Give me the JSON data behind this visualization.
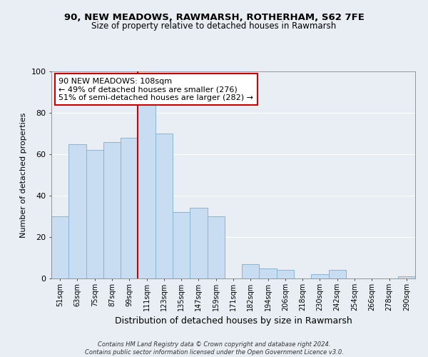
{
  "title": "90, NEW MEADOWS, RAWMARSH, ROTHERHAM, S62 7FE",
  "subtitle": "Size of property relative to detached houses in Rawmarsh",
  "xlabel": "Distribution of detached houses by size in Rawmarsh",
  "ylabel": "Number of detached properties",
  "bar_color": "#c8ddf2",
  "bar_edge_color": "#8ab4d4",
  "background_color": "#e8eef4",
  "plot_background": "#e8eef4",
  "grid_color": "#ffffff",
  "categories": [
    "51sqm",
    "63sqm",
    "75sqm",
    "87sqm",
    "99sqm",
    "111sqm",
    "123sqm",
    "135sqm",
    "147sqm",
    "159sqm",
    "171sqm",
    "182sqm",
    "194sqm",
    "206sqm",
    "218sqm",
    "230sqm",
    "242sqm",
    "254sqm",
    "266sqm",
    "278sqm",
    "290sqm"
  ],
  "values": [
    30,
    65,
    62,
    66,
    68,
    84,
    70,
    32,
    34,
    30,
    0,
    7,
    5,
    4,
    0,
    2,
    4,
    0,
    0,
    0,
    1
  ],
  "ylim": [
    0,
    100
  ],
  "yticks": [
    0,
    20,
    40,
    60,
    80,
    100
  ],
  "vline_color": "#cc0000",
  "annotation_text": "90 NEW MEADOWS: 108sqm\n← 49% of detached houses are smaller (276)\n51% of semi-detached houses are larger (282) →",
  "footer": "Contains HM Land Registry data © Crown copyright and database right 2024.\nContains public sector information licensed under the Open Government Licence v3.0.",
  "vline_bar_index": 5
}
